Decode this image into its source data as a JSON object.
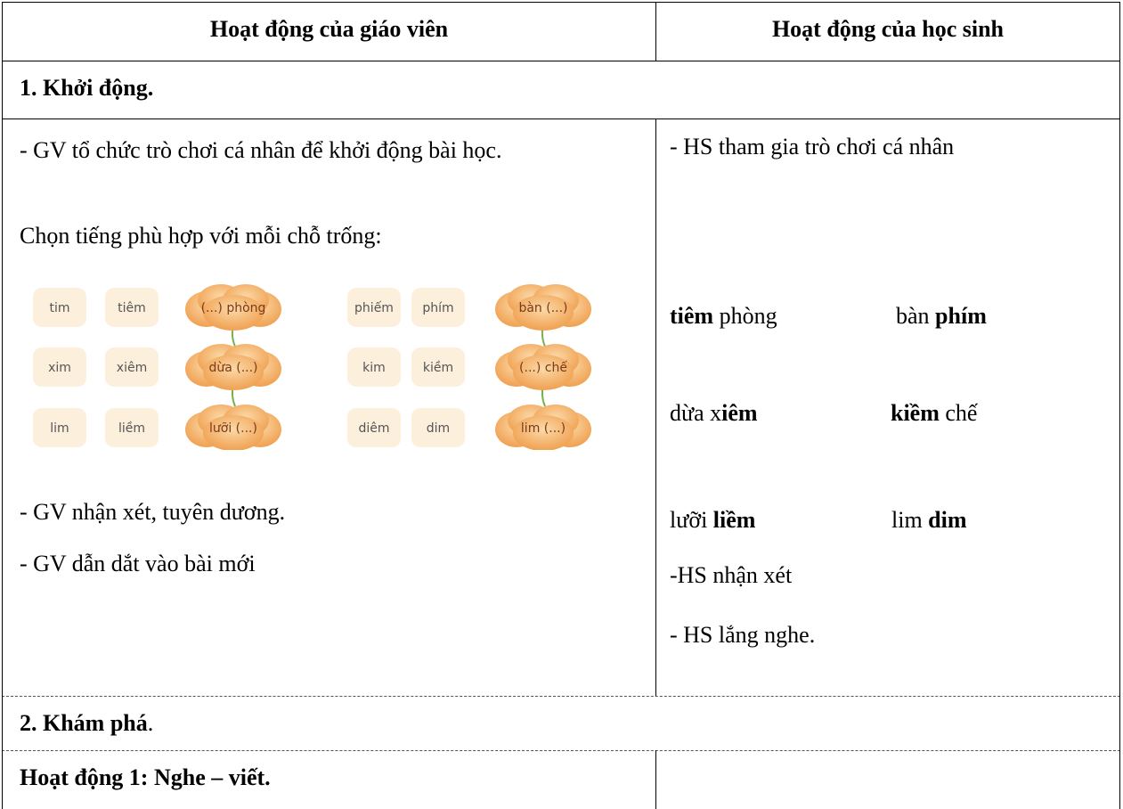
{
  "table": {
    "header": [
      "Hoạt động của giáo viên",
      "Hoạt động của học sinh"
    ],
    "section1": "1. Khởi động.",
    "teacher": {
      "intro": "- GV tổ chức trò chơi cá nhân để khởi động bài học.",
      "prompt": "Chọn tiếng phù hợp với mỗi chỗ trống:",
      "image_rows": [
        [
          "tim",
          "tiêm",
          "(...) phòng",
          "phiếm",
          "phím",
          "bàn (...)"
        ],
        [
          "xim",
          "xiêm",
          "dừa (...)",
          "kim",
          "kiềm",
          "(...) chế"
        ],
        [
          "lim",
          "liềm",
          "lưỡi (...)",
          "diêm",
          "dim",
          "lim (...)"
        ]
      ],
      "comment": "- GV nhận xét, tuyên dương.",
      "lead": "- GV dẫn dắt vào bài mới"
    },
    "student": {
      "join": "- HS tham gia trò chơi cá nhân",
      "answers": [
        [
          [
            "tiêm",
            "phòng"
          ],
          [
            "bàn",
            "phím"
          ]
        ],
        [
          [
            "dừa x",
            "iêm"
          ],
          [
            "kiềm",
            "chế"
          ]
        ],
        [
          [
            "lưỡi",
            "liềm"
          ],
          [
            "lim",
            "dim"
          ]
        ]
      ],
      "remark": "-HS nhận xét",
      "listen": "- HS lắng nghe."
    },
    "section2": [
      "2. Khám phá",
      "."
    ],
    "activity1": "Hoạt động 1: Nghe – viết."
  }
}
